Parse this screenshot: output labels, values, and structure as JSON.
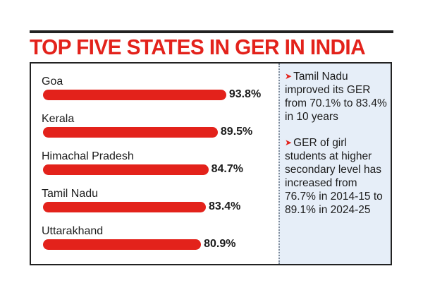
{
  "chart_data": {
    "type": "bar",
    "orientation": "horizontal",
    "title": "TOP FIVE STATES IN GER IN INDIA",
    "categories": [
      "Goa",
      "Kerala",
      "Himachal Pradesh",
      "Tamil Nadu",
      "Uttarakhand"
    ],
    "values": [
      93.8,
      89.5,
      84.7,
      83.4,
      80.9
    ],
    "value_labels": [
      "93.8%",
      "89.5%",
      "84.7%",
      "83.4%",
      "80.9%"
    ],
    "unit": "%",
    "bar_color": "#e3221b",
    "grid": false
  },
  "notes": [
    "Tamil Nadu improved its GER from 70.1% to 83.4% in 10 years",
    "GER of girl students at higher secondary level has increased from 76.7% in 2014-15 to 89.1% in 2024-25"
  ],
  "colors": {
    "title": "#e3221b",
    "panel": "#e6eef8",
    "arrow": "#e3221b"
  },
  "icons": {
    "note_marker": "arrowhead-right-icon"
  }
}
